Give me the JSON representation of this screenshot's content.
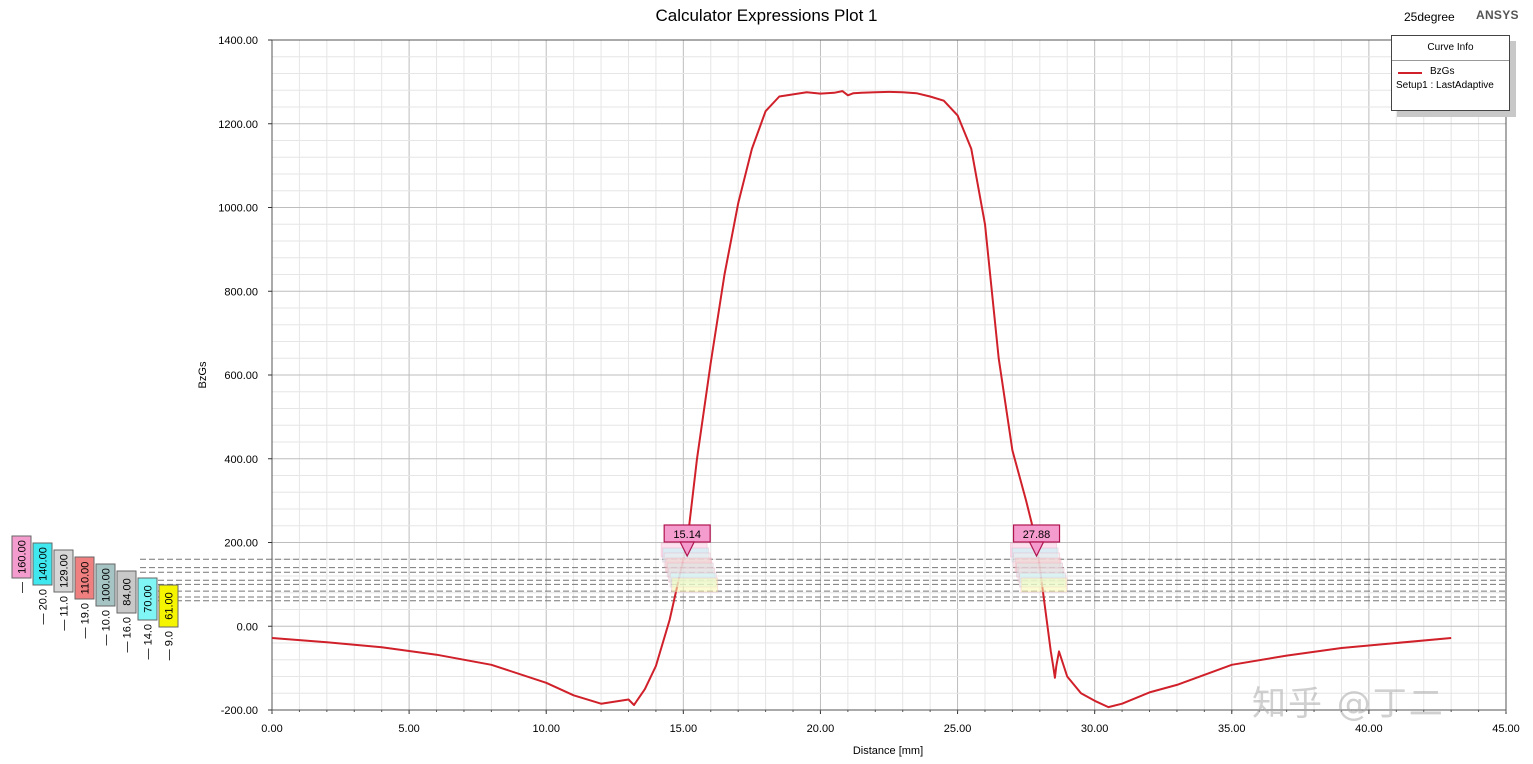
{
  "header": {
    "title": "Calculator Expressions Plot 1",
    "subtitle": "25degree",
    "brand": "ANSYS"
  },
  "legend": {
    "title": "Curve Info",
    "series_name": "BzGs",
    "setup": "Setup1 : LastAdaptive"
  },
  "watermark": "知乎 @丁二",
  "colors": {
    "curve": "#d0202a",
    "marker_fill": "#f59cce",
    "grid_major": "#bdbdbd",
    "grid_minor": "#e6e6e6",
    "threshold_line": "#777777"
  },
  "chart_data": {
    "type": "line",
    "title": "Calculator Expressions Plot 1",
    "xlabel": "Distance [mm]",
    "ylabel": "BzGs",
    "xlim": [
      0,
      45
    ],
    "ylim": [
      -200,
      1400
    ],
    "xticks": [
      0,
      5,
      10,
      15,
      20,
      25,
      30,
      35,
      40,
      45
    ],
    "yticks": [
      -200,
      0,
      200,
      400,
      600,
      800,
      1000,
      1200,
      1400
    ],
    "xtick_labels": [
      "0.00",
      "5.00",
      "10.00",
      "15.00",
      "20.00",
      "25.00",
      "30.00",
      "35.00",
      "40.00",
      "45.00"
    ],
    "ytick_labels": [
      "-200.00",
      "0.00",
      "200.00",
      "400.00",
      "600.00",
      "800.00",
      "1000.00",
      "1200.00",
      "1400.00"
    ],
    "grid": true,
    "series": [
      {
        "name": "BzGs",
        "x": [
          0,
          2,
          4,
          6,
          8,
          10,
          11,
          12,
          12.5,
          13.0,
          13.2,
          13.6,
          14.0,
          14.5,
          15.0,
          15.14,
          15.5,
          16.0,
          16.5,
          17.0,
          17.5,
          18.0,
          18.5,
          19.0,
          19.5,
          20.0,
          20.5,
          20.8,
          21.0,
          21.2,
          21.5,
          22.0,
          22.5,
          23.0,
          23.5,
          24.0,
          24.5,
          25.0,
          25.5,
          26.0,
          26.5,
          27.0,
          27.5,
          27.88,
          28.2,
          28.4,
          28.5,
          28.55,
          28.6,
          28.7,
          29.0,
          29.5,
          30.0,
          30.5,
          31.0,
          32.0,
          33.0,
          35.0,
          37.0,
          39.0,
          41.0,
          43.0
        ],
        "y": [
          -28,
          -38,
          -50,
          -68,
          -92,
          -135,
          -165,
          -185,
          -180,
          -175,
          -188,
          -150,
          -95,
          15,
          160,
          200,
          400,
          630,
          840,
          1010,
          1140,
          1230,
          1265,
          1270,
          1275,
          1272,
          1274,
          1278,
          1268,
          1273,
          1274,
          1275,
          1276,
          1275,
          1273,
          1265,
          1255,
          1220,
          1140,
          960,
          640,
          420,
          300,
          200,
          40,
          -60,
          -100,
          -123,
          -95,
          -60,
          -120,
          -160,
          -178,
          -193,
          -185,
          -158,
          -140,
          -92,
          -70,
          -52,
          -40,
          -28
        ]
      }
    ],
    "markers": [
      {
        "x": 15.14,
        "label": "15.14"
      },
      {
        "x": 27.88,
        "label": "27.88"
      }
    ],
    "threshold_lines": [
      160,
      140,
      129,
      110,
      100,
      84,
      70,
      61
    ],
    "threshold_tags": [
      {
        "value_label": "160.00",
        "color": "#f59cce",
        "side_label": "—"
      },
      {
        "value_label": "140.00",
        "color": "#3fe8ee",
        "side_label": "— 20.0"
      },
      {
        "value_label": "129.00",
        "color": "#d6d6d6",
        "side_label": "— 11.0"
      },
      {
        "value_label": "110.00",
        "color": "#f08080",
        "side_label": "— 19.0"
      },
      {
        "value_label": "100.00",
        "color": "#a6c4c4",
        "side_label": "— 10.0"
      },
      {
        "value_label": "84.00",
        "color": "#c8c8c8",
        "side_label": "— 16.0"
      },
      {
        "value_label": "70.00",
        "color": "#7ff5f5",
        "side_label": "— 14.0"
      },
      {
        "value_label": "61.00",
        "color": "#f5f500",
        "side_label": "— 9.0"
      }
    ]
  }
}
